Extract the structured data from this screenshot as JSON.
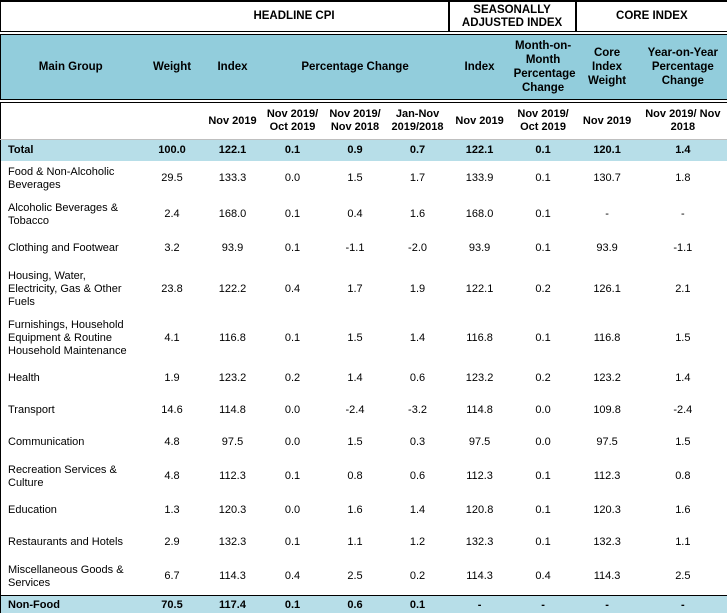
{
  "colors": {
    "header_bg": "#92CDDC",
    "highlight_bg": "#B7DEE8",
    "border": "#000000"
  },
  "table": {
    "section_headers": {
      "headline": "HEADLINE CPI",
      "seasonally_adjusted": "SEASONALLY ADJUSTED INDEX",
      "core": "CORE INDEX"
    },
    "column_headers": {
      "main_group": "Main Group",
      "weight": "Weight",
      "index": "Index",
      "percentage_change": "Percentage Change",
      "sa_index": "Index",
      "sa_mom": "Month-on-Month Percentage Change",
      "core_weight": "Core Index Weight",
      "core_yoy": "Year-on-Year Percentage Change"
    },
    "period_headers": [
      "Nov 2019",
      "Nov 2019/ Oct 2019",
      "Nov 2019/ Nov 2018",
      "Jan-Nov 2019/2018",
      "Nov 2019",
      "Nov 2019/ Oct 2019",
      "Nov 2019",
      "Nov 2019/ Nov 2018"
    ],
    "rows": [
      {
        "label": "Total",
        "highlight": true,
        "values": [
          "100.0",
          "122.1",
          "0.1",
          "0.9",
          "0.7",
          "122.1",
          "0.1",
          "120.1",
          "1.4"
        ]
      },
      {
        "label": "Food & Non-Alcoholic Beverages",
        "highlight": false,
        "values": [
          "29.5",
          "133.3",
          "0.0",
          "1.5",
          "1.7",
          "133.9",
          "0.1",
          "130.7",
          "1.8"
        ]
      },
      {
        "label": "Alcoholic Beverages & Tobacco",
        "highlight": false,
        "values": [
          "2.4",
          "168.0",
          "0.1",
          "0.4",
          "1.6",
          "168.0",
          "0.1",
          "-",
          "-"
        ]
      },
      {
        "label": "Clothing and Footwear",
        "highlight": false,
        "values": [
          "3.2",
          "93.9",
          "0.1",
          "-1.1",
          "-2.0",
          "93.9",
          "0.1",
          "93.9",
          "-1.1"
        ]
      },
      {
        "label": "Housing, Water, Electricity, Gas & Other Fuels",
        "highlight": false,
        "values": [
          "23.8",
          "122.2",
          "0.4",
          "1.7",
          "1.9",
          "122.1",
          "0.2",
          "126.1",
          "2.1"
        ]
      },
      {
        "label": "Furnishings, Household Equipment  & Routine Household Maintenance",
        "highlight": false,
        "values": [
          "4.1",
          "116.8",
          "0.1",
          "1.5",
          "1.4",
          "116.8",
          "0.1",
          "116.8",
          "1.5"
        ]
      },
      {
        "label": "Health",
        "highlight": false,
        "values": [
          "1.9",
          "123.2",
          "0.2",
          "1.4",
          "0.6",
          "123.2",
          "0.2",
          "123.2",
          "1.4"
        ]
      },
      {
        "label": "Transport",
        "highlight": false,
        "values": [
          "14.6",
          "114.8",
          "0.0",
          "-2.4",
          "-3.2",
          "114.8",
          "0.0",
          "109.8",
          "-2.4"
        ]
      },
      {
        "label": "Communication",
        "highlight": false,
        "values": [
          "4.8",
          "97.5",
          "0.0",
          "1.5",
          "0.3",
          "97.5",
          "0.0",
          "97.5",
          "1.5"
        ]
      },
      {
        "label": "Recreation Services & Culture",
        "highlight": false,
        "values": [
          "4.8",
          "112.3",
          "0.1",
          "0.8",
          "0.6",
          "112.3",
          "0.1",
          "112.3",
          "0.8"
        ]
      },
      {
        "label": "Education",
        "highlight": false,
        "values": [
          "1.3",
          "120.3",
          "0.0",
          "1.6",
          "1.4",
          "120.8",
          "0.1",
          "120.3",
          "1.6"
        ]
      },
      {
        "label": "Restaurants and Hotels",
        "highlight": false,
        "values": [
          "2.9",
          "132.3",
          "0.1",
          "1.1",
          "1.2",
          "132.3",
          "0.1",
          "132.3",
          "1.1"
        ]
      },
      {
        "label": "Miscellaneous Goods & Services",
        "highlight": false,
        "values": [
          "6.7",
          "114.3",
          "0.4",
          "2.5",
          "0.2",
          "114.3",
          "0.4",
          "114.3",
          "2.5"
        ]
      },
      {
        "label": "Non-Food",
        "highlight": true,
        "values": [
          "70.5",
          "117.4",
          "0.1",
          "0.6",
          "0.1",
          "-",
          "-",
          "-",
          "-"
        ]
      }
    ]
  }
}
